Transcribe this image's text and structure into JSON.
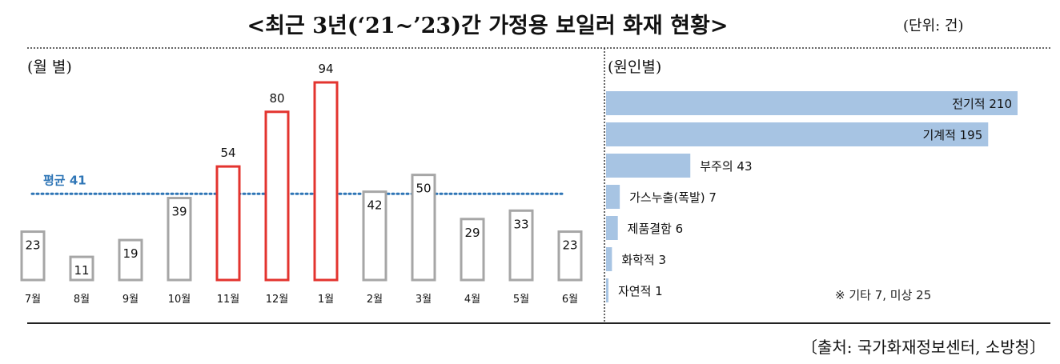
{
  "title": "<최근 3년(‘21~’23)간 가정용 보일러 화재 현황>",
  "unit": "(단위: 건)",
  "source": "〔출처: 국가화재정보센터, 소방청〕",
  "chart_data": [
    {
      "type": "bar",
      "title": "(월 별)",
      "categories": [
        "7월",
        "8월",
        "9월",
        "10월",
        "11월",
        "12월",
        "1월",
        "2월",
        "3월",
        "4월",
        "5월",
        "6월"
      ],
      "values": [
        23,
        11,
        19,
        39,
        54,
        80,
        94,
        42,
        50,
        29,
        33,
        23
      ],
      "highlighted": [
        "11월",
        "12월",
        "1월"
      ],
      "average": {
        "label": "평균 41",
        "value": 41
      },
      "colors": {
        "normal": "#a6a6a6",
        "highlight": "#e3342f",
        "average": "#2e75b6"
      },
      "ylim": [
        0,
        94
      ]
    },
    {
      "type": "bar",
      "orientation": "horizontal",
      "title": "(원인별)",
      "categories": [
        "전기적",
        "기계적",
        "부주의",
        "가스누출(폭발)",
        "제품결함",
        "화학적",
        "자연적"
      ],
      "values": [
        210,
        195,
        43,
        7,
        6,
        3,
        1
      ],
      "color": "#a7c4e3",
      "xlim": [
        0,
        210
      ],
      "note": "※ 기타 7, 미상 25"
    }
  ]
}
